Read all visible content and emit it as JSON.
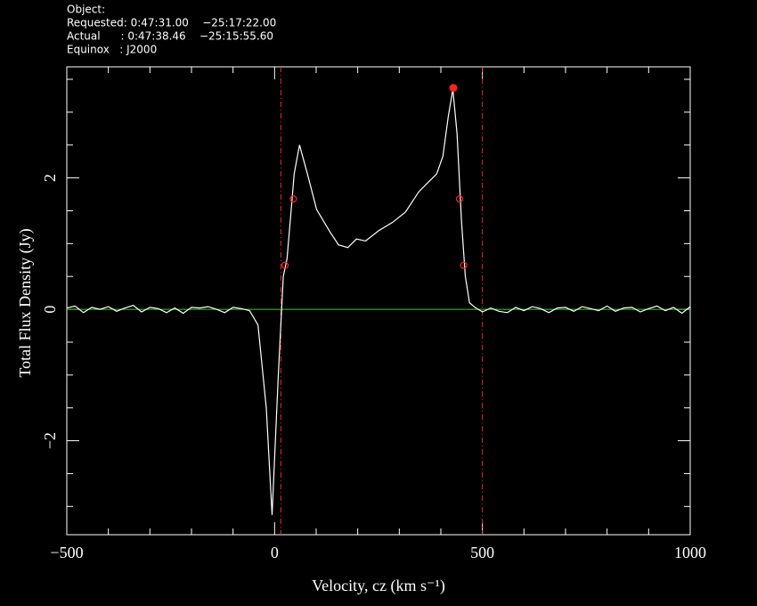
{
  "header": {
    "lines": [
      "Object:",
      "Requested: 0:47:31.00    −25:17:22.00",
      "Actual      : 0:47:38.46    −25:15:55.60",
      "Equinox   : J2000"
    ]
  },
  "chart_data": {
    "type": "line",
    "xlabel": "Velocity, cz (km s⁻¹)",
    "ylabel": "Total Flux Density (Jy)",
    "x": [
      -500,
      -480,
      -460,
      -440,
      -420,
      -400,
      -380,
      -360,
      -340,
      -320,
      -300,
      -280,
      -260,
      -240,
      -220,
      -200,
      -180,
      -160,
      -140,
      -120,
      -100,
      -80,
      -60,
      -40,
      -20,
      -6,
      9,
      21,
      30,
      41,
      47,
      60,
      79,
      101,
      133,
      154,
      176,
      197,
      219,
      251,
      283,
      315,
      347,
      369,
      390,
      405,
      418,
      429,
      439,
      450,
      459,
      469,
      482,
      500,
      520,
      540,
      560,
      580,
      600,
      620,
      640,
      660,
      680,
      700,
      720,
      740,
      760,
      780,
      800,
      820,
      840,
      860,
      880,
      900,
      920,
      940,
      960,
      980,
      1000
    ],
    "values": [
      0.02,
      0.05,
      -0.05,
      0.03,
      0,
      0.04,
      -0.03,
      0.02,
      0.06,
      -0.04,
      0.03,
      0.01,
      -0.05,
      0.02,
      -0.06,
      0.03,
      0.02,
      0.04,
      0,
      -0.05,
      0.03,
      0.01,
      -0.02,
      -0.24,
      -1.5,
      -3.13,
      -1.0,
      0.5,
      0.77,
      1.6,
      2.06,
      2.5,
      2.06,
      1.52,
      1.18,
      0.98,
      0.94,
      1.07,
      1.04,
      1.2,
      1.32,
      1.48,
      1.79,
      1.93,
      2.06,
      2.33,
      2.94,
      3.35,
      2.67,
      1.32,
      0.5,
      0.1,
      0.03,
      -0.04,
      0.02,
      -0.03,
      -0.05,
      0.03,
      -0.02,
      0.04,
      0.01,
      -0.05,
      0.02,
      0.03,
      -0.03,
      0.04,
      0.01,
      -0.02,
      0.05,
      -0.03,
      0.02,
      0.03,
      -0.04,
      0.01,
      0.05,
      -0.02,
      0.03,
      -0.06,
      0.04
    ],
    "color": "#ffffff",
    "baseline": 0,
    "baseline_color": "#33cc33",
    "vlines": [
      15,
      500
    ],
    "vline_color": "#e03030",
    "peak": {
      "x": 430,
      "y": 3.37
    },
    "edge_points": {
      "x": [
        25,
        45,
        445,
        455
      ],
      "y": [
        0.67,
        1.68,
        1.68,
        0.67
      ]
    },
    "marker_color": "#ff2020",
    "xlim": [
      -500,
      1000
    ],
    "ylim": [
      -3.43,
      3.69
    ],
    "xticks": [
      {
        "value": -500,
        "label": "−500"
      },
      0,
      500,
      1000
    ],
    "yticks": [
      {
        "value": -2,
        "label": "−2"
      },
      0,
      2
    ],
    "xminorticks": [
      -400,
      -300,
      -200,
      -100,
      100,
      200,
      300,
      400,
      600,
      700,
      800,
      900
    ],
    "yminorticks": [
      -3,
      -2.5,
      -1.5,
      -1,
      -0.5,
      0.5,
      1,
      1.5,
      2.5,
      3,
      3.5
    ]
  }
}
